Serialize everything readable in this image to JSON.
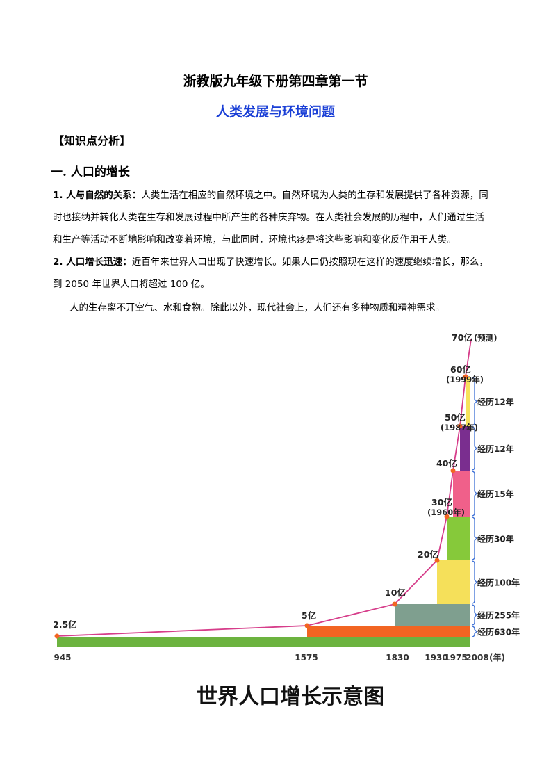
{
  "doc": {
    "title": "浙教版九年级下册第四章第一节",
    "subtitle": "人类发展与环境问题",
    "section": "【知识点分析】",
    "heading1": "一. 人口的增长",
    "p1_label": "1. 人与自然的关系：",
    "p1_line1": "人类生活在相应的自然环境之中。自然环境为人类的生存和发展提供了各种资源，同",
    "p1_line2": "时也接纳并转化人类在生存和发展过程中所产生的各种庆弃物。在人类社会发展的历程中，人们通过生活",
    "p1_line3": "和生产等活动不断地影响和改变着环境，与此同时，环境也疼是将这些影响和变化反作用于人类。",
    "p2_label": "2. 人口增长迅速：",
    "p2_line1": "近百年来世界人口出现了快速增长。如果人口仍按照现在这样的速度继续增长，那么，",
    "p2_line2": "到 2050 年世界人口将超过 100 亿。",
    "p3": "人的生存离不开空气、水和食物。除此以外，现代社会上，人们还有多种物质和精神需求。"
  },
  "chart_data": {
    "type": "line",
    "title": "世界人口增长示意图",
    "x_unit": "(年)",
    "x_tick_labels": [
      "945",
      "1575",
      "1830",
      "1930",
      "1975",
      "2008"
    ],
    "points": [
      {
        "year": 945,
        "pop": 2.5,
        "label": "2.5亿"
      },
      {
        "year": 1575,
        "pop": 5,
        "label": "5亿"
      },
      {
        "year": 1830,
        "pop": 10,
        "label": "10亿"
      },
      {
        "year": 1930,
        "pop": 20,
        "label": "20亿"
      },
      {
        "year": 1960,
        "pop": 30,
        "label": "30亿",
        "sub": "(1960年)"
      },
      {
        "year": 1975,
        "pop": 40,
        "label": "40亿"
      },
      {
        "year": 1987,
        "pop": 50,
        "label": "50亿",
        "sub": "(1987年)"
      },
      {
        "year": 1999,
        "pop": 60,
        "label": "60亿",
        "sub": "(1999年)"
      },
      {
        "year": 2012,
        "pop": 70,
        "label": "70亿",
        "sub": "(预测)"
      }
    ],
    "intervals": [
      {
        "label": "经历630年",
        "color": "#f26522"
      },
      {
        "label": "经历255年",
        "color": "#7f9f8f"
      },
      {
        "label": "经历100年",
        "color": "#f5e05a"
      },
      {
        "label": "经历30年",
        "color": "#86c93a"
      },
      {
        "label": "经历15年",
        "color": "#f0608a"
      },
      {
        "label": "经历12年",
        "color": "#7a2e8f"
      },
      {
        "label": "经历12年",
        "color": "#f7e25b"
      }
    ],
    "base_color": "#6cb33f",
    "line_color": "#d63d8a",
    "point_color": "#f26522"
  }
}
